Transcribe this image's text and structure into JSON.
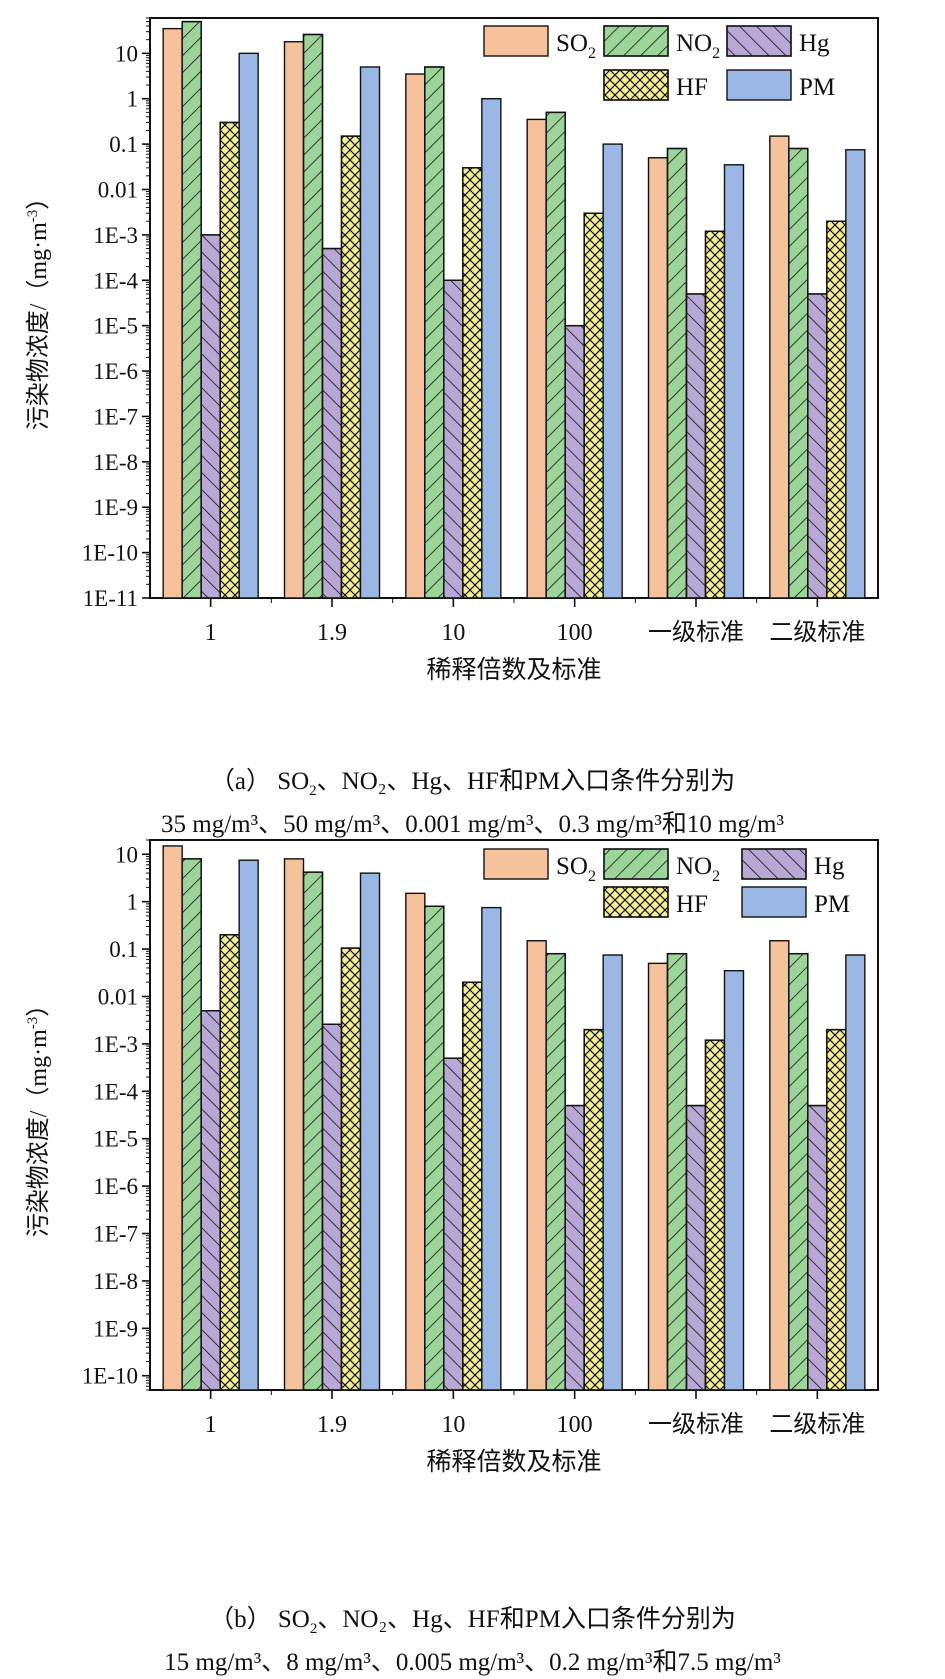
{
  "colors": {
    "SO2": "#f5c29b",
    "NO2": "#9cd49a",
    "Hg": "#b9a8d6",
    "HF": "#f7f08f",
    "PM": "#9bb8e4"
  },
  "chart_data": [
    {
      "type": "bar",
      "panel": "a",
      "yscale": "log",
      "ylim": [
        1e-11,
        60
      ],
      "ylabel": "污染物浓度/（mg·m-3）",
      "xlabel": "稀释倍数及标准",
      "y_tick_labels": [
        "1E-11",
        "1E-10",
        "1E-9",
        "1E-8",
        "1E-7",
        "1E-6",
        "1E-5",
        "1E-4",
        "1E-3",
        "0.01",
        "0.1",
        "1",
        "10"
      ],
      "categories": [
        "1",
        "1.9",
        "10",
        "100",
        "一级标准",
        "二级标准"
      ],
      "series": [
        {
          "name": "SO2",
          "values": [
            35,
            18,
            3.5,
            0.35,
            0.05,
            0.15
          ]
        },
        {
          "name": "NO2",
          "values": [
            50,
            26,
            5,
            0.5,
            0.08,
            0.08
          ]
        },
        {
          "name": "Hg",
          "values": [
            0.001,
            0.0005,
            0.0001,
            1e-05,
            5e-05,
            5e-05
          ]
        },
        {
          "name": "HF",
          "values": [
            0.3,
            0.15,
            0.03,
            0.003,
            0.0012,
            0.002
          ]
        },
        {
          "name": "PM",
          "values": [
            10,
            5,
            1,
            0.1,
            0.035,
            0.075
          ]
        }
      ],
      "caption": {
        "prefix": "（a） SO",
        "sub": "2",
        "line1_rest": "、NO₂、Hg、HF和PM入口条件分别为",
        "line2": "35 mg/m³、50 mg/m³、0.001 mg/m³、0.3 mg/m³和10 mg/m³"
      }
    },
    {
      "type": "bar",
      "panel": "b",
      "yscale": "log",
      "ylim": [
        5e-11,
        20
      ],
      "ylabel": "污染物浓度/（mg·m-3）",
      "xlabel": "稀释倍数及标准",
      "y_tick_labels": [
        "1E-10",
        "1E-9",
        "1E-8",
        "1E-7",
        "1E-6",
        "1E-5",
        "1E-4",
        "1E-3",
        "0.01",
        "0.1",
        "1",
        "10"
      ],
      "categories": [
        "1",
        "1.9",
        "10",
        "100",
        "一级标准",
        "二级标准"
      ],
      "series": [
        {
          "name": "SO2",
          "values": [
            15,
            8,
            1.5,
            0.15,
            0.05,
            0.15
          ]
        },
        {
          "name": "NO2",
          "values": [
            8,
            4.2,
            0.8,
            0.08,
            0.08,
            0.08
          ]
        },
        {
          "name": "Hg",
          "values": [
            0.005,
            0.0026,
            0.0005,
            5e-05,
            5e-05,
            5e-05
          ]
        },
        {
          "name": "HF",
          "values": [
            0.2,
            0.105,
            0.02,
            0.002,
            0.0012,
            0.002
          ]
        },
        {
          "name": "PM",
          "values": [
            7.5,
            4,
            0.75,
            0.075,
            0.035,
            0.075
          ]
        }
      ],
      "caption": {
        "prefix": "（b） SO",
        "sub": "2",
        "line1_rest": "、NO₂、Hg、HF和PM入口条件分别为",
        "line2": "15 mg/m³、8 mg/m³、0.005 mg/m³、0.2 mg/m³和7.5 mg/m³"
      }
    }
  ],
  "legend": {
    "SO2_main": "SO",
    "SO2_sub": "2",
    "NO2_main": "NO",
    "NO2_sub": "2",
    "Hg": "Hg",
    "HF": "HF",
    "PM": "PM"
  }
}
